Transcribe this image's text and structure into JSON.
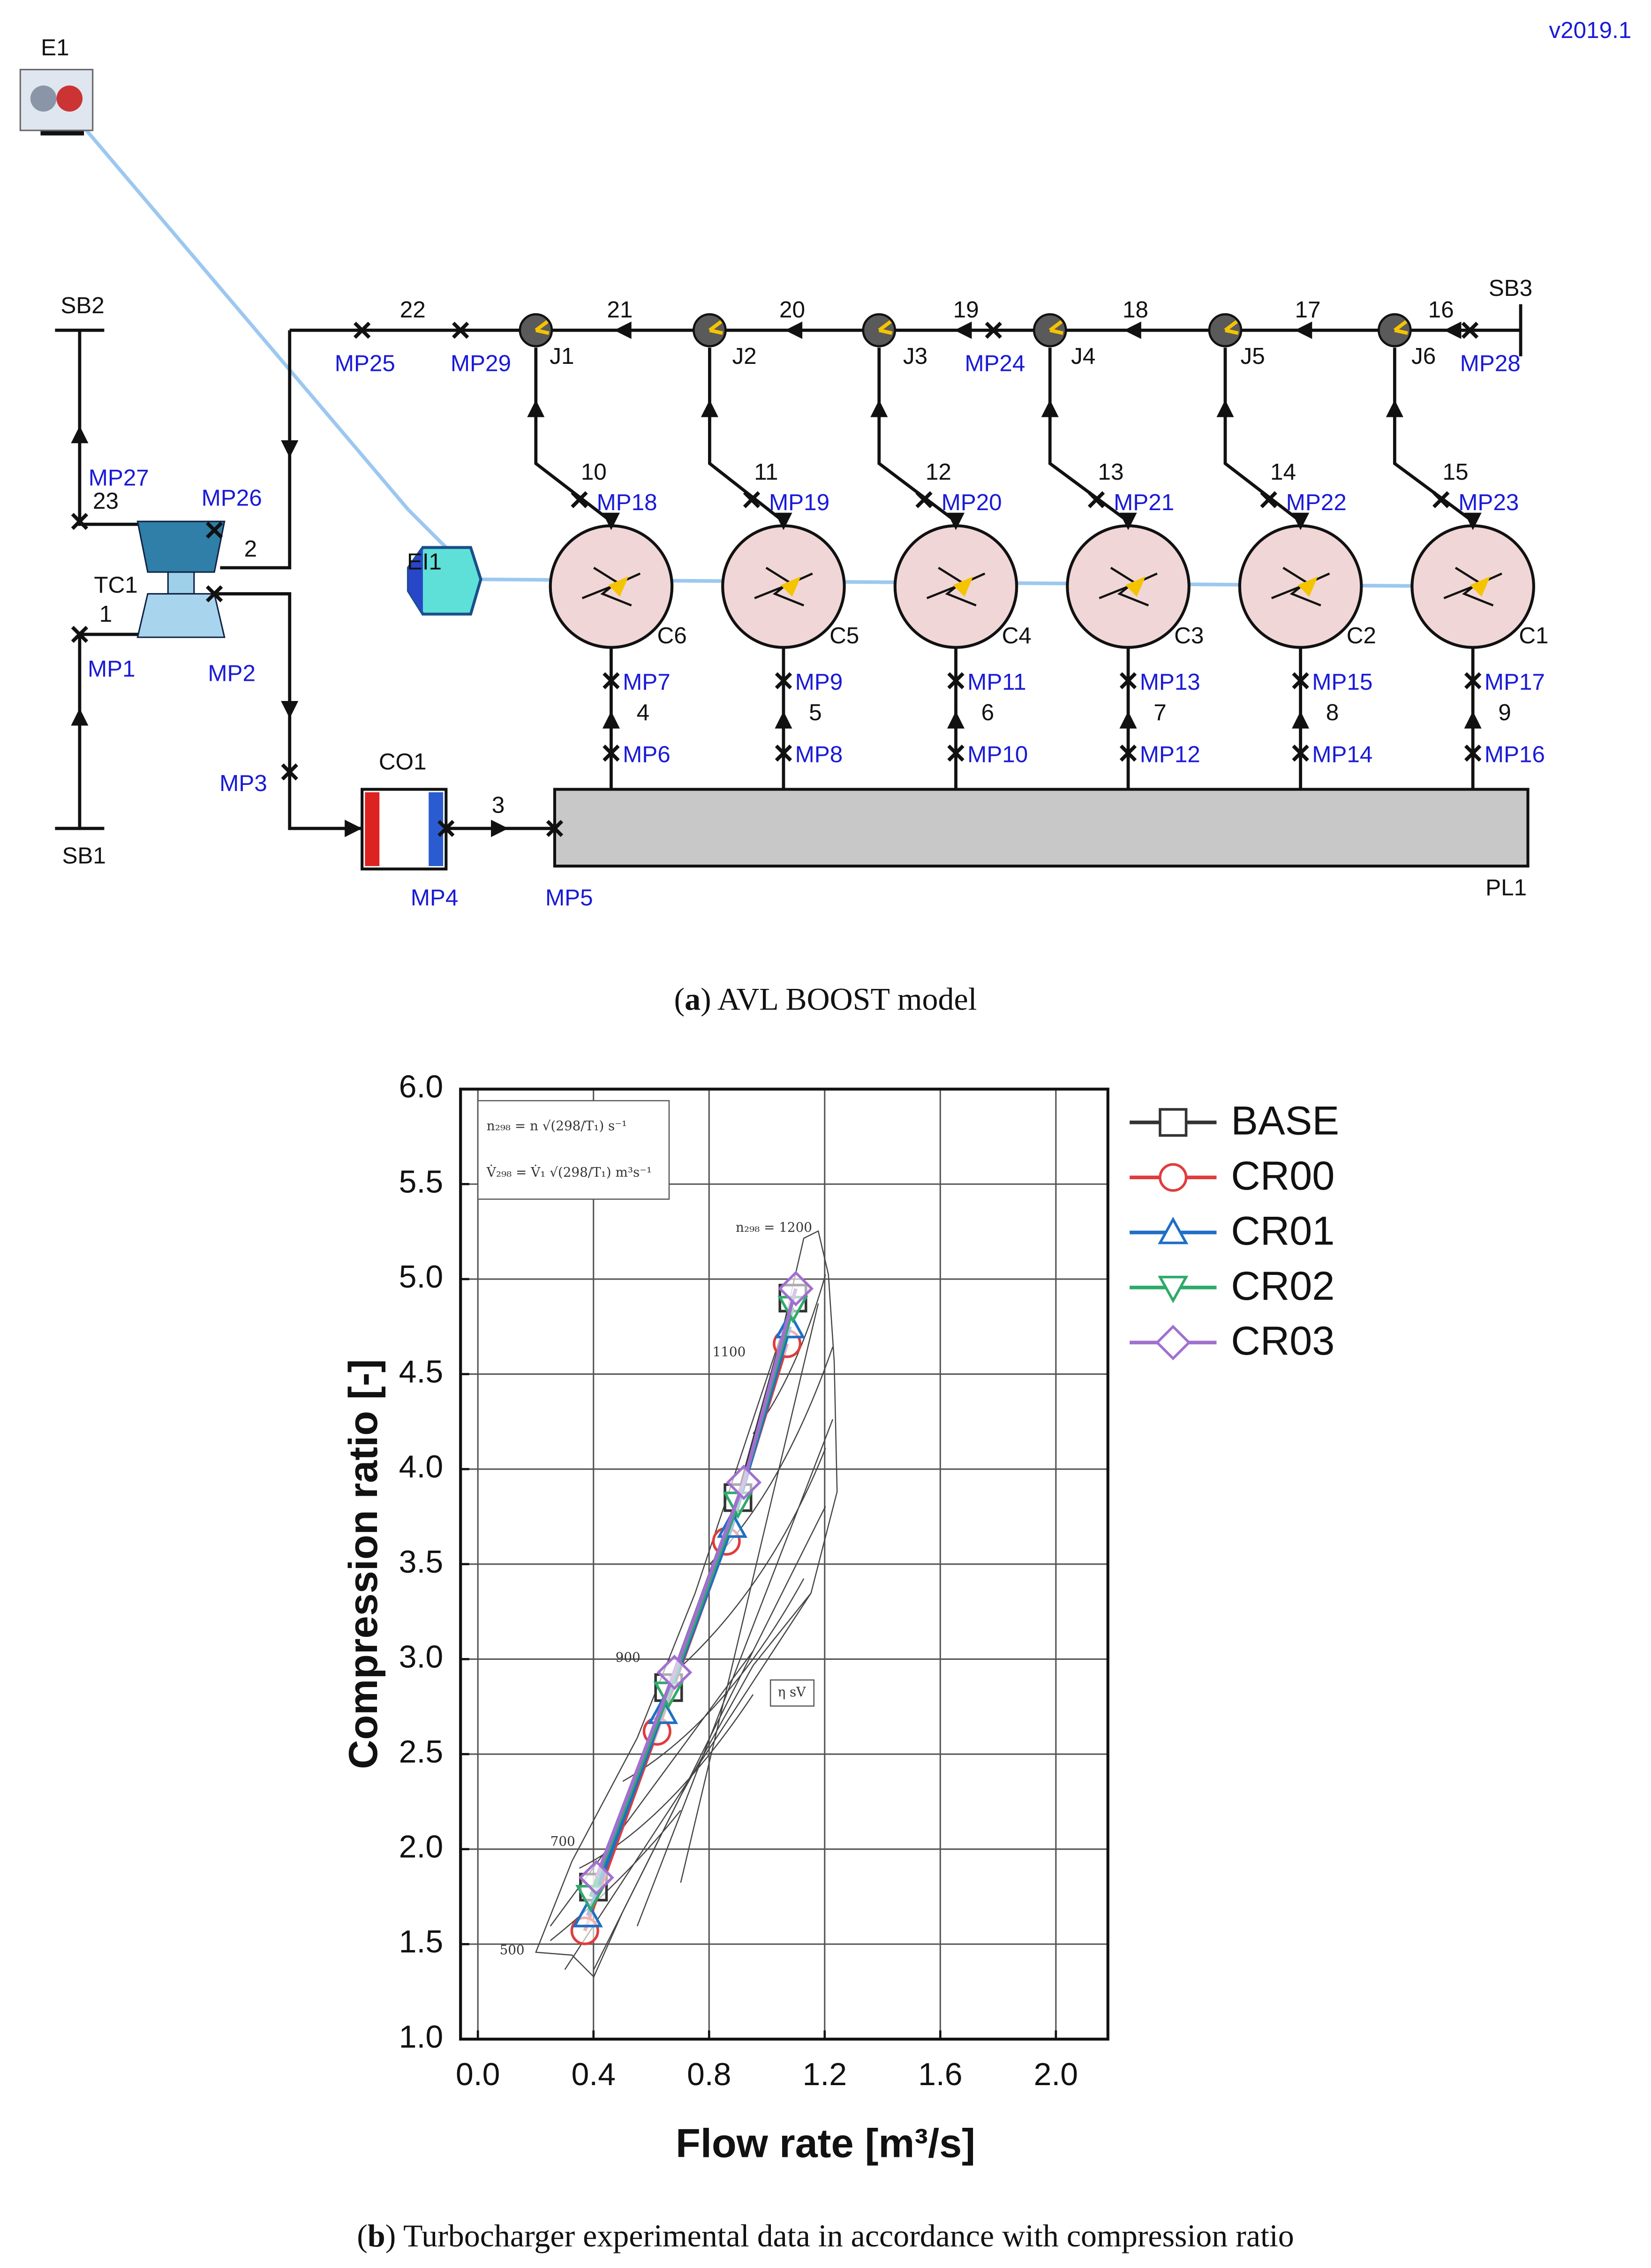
{
  "diagram": {
    "labels": [
      "v2019.1",
      "E1",
      "SB2",
      "SB1",
      "SB3",
      "TC1",
      "MP26",
      "MP27",
      "23",
      "2",
      "1",
      "MP1",
      "MP2",
      "MP3",
      "CO1",
      "3",
      "MP4",
      "MP5",
      "PL1",
      "EI1",
      "22",
      "MP25",
      "MP29",
      "J1",
      "21",
      "J2",
      "20",
      "J3",
      "19",
      "MP24",
      "J4",
      "18",
      "J5",
      "17",
      "J6",
      "16",
      "MP28"
    ],
    "cylinders": [
      {
        "name": "C6",
        "outlet_pipe": "10",
        "outlet_mp": "MP18",
        "inlet_mp_upper": "MP7",
        "inlet_pipe": "4",
        "inlet_mp_lower": "MP6"
      },
      {
        "name": "C5",
        "outlet_pipe": "11",
        "outlet_mp": "MP19",
        "inlet_mp_upper": "MP9",
        "inlet_pipe": "5",
        "inlet_mp_lower": "MP8"
      },
      {
        "name": "C4",
        "outlet_pipe": "12",
        "outlet_mp": "MP20",
        "inlet_mp_upper": "MP11",
        "inlet_pipe": "6",
        "inlet_mp_lower": "MP10"
      },
      {
        "name": "C3",
        "outlet_pipe": "13",
        "outlet_mp": "MP21",
        "inlet_mp_upper": "MP13",
        "inlet_pipe": "7",
        "inlet_mp_lower": "MP12"
      },
      {
        "name": "C2",
        "outlet_pipe": "14",
        "outlet_mp": "MP22",
        "inlet_mp_upper": "MP15",
        "inlet_pipe": "8",
        "inlet_mp_lower": "MP14"
      },
      {
        "name": "C1",
        "outlet_pipe": "15",
        "outlet_mp": "MP23",
        "inlet_mp_upper": "MP17",
        "inlet_pipe": "9",
        "inlet_mp_lower": "MP16"
      }
    ],
    "caption": [
      "(",
      "a",
      ") AVL BOOST model"
    ]
  },
  "chart_data": {
    "type": "line",
    "x_label": "Flow rate [m³/s]",
    "y_label": "Compression ratio [-]",
    "xlim": [
      -0.06,
      2.18
    ],
    "ylim": [
      1.0,
      6.0
    ],
    "xticks": [
      {
        "value": 0.0,
        "label": "0.0"
      },
      0.4,
      0.8,
      1.2,
      1.6,
      {
        "value": 2.0,
        "label": "2.0"
      }
    ],
    "yticks": [
      {
        "value": 1.0,
        "label": "1.0"
      },
      1.5,
      {
        "value": 2.0,
        "label": "2.0"
      },
      2.5,
      {
        "value": 3.0,
        "label": "3.0"
      },
      3.5,
      {
        "value": 4.0,
        "label": "4.0"
      },
      4.5,
      {
        "value": 5.0,
        "label": "5.0"
      },
      5.5,
      {
        "value": 6.0,
        "label": "6.0"
      }
    ],
    "grid": true,
    "legend": "right",
    "series": [
      {
        "name": "BASE",
        "color": "#333333",
        "marker": "square",
        "x": [
          0.4,
          0.66,
          0.9,
          1.09
        ],
        "values": [
          1.8,
          2.85,
          3.85,
          4.9
        ]
      },
      {
        "name": "CR00",
        "color": "#e03c3c",
        "marker": "circle",
        "x": [
          0.37,
          0.62,
          0.86,
          1.07
        ],
        "values": [
          1.57,
          2.62,
          3.62,
          4.66
        ]
      },
      {
        "name": "CR01",
        "color": "#1f6fc4",
        "marker": "triangle-up",
        "x": [
          0.38,
          0.64,
          0.88,
          1.08
        ],
        "values": [
          1.65,
          2.72,
          3.7,
          4.75
        ]
      },
      {
        "name": "CR02",
        "color": "#2eaa6a",
        "marker": "triangle-down",
        "x": [
          0.39,
          0.66,
          0.9,
          1.09
        ],
        "values": [
          1.75,
          2.82,
          3.82,
          4.85
        ]
      },
      {
        "name": "CR03",
        "color": "#a070d0",
        "marker": "diamond",
        "x": [
          0.41,
          0.68,
          0.92,
          1.1
        ],
        "values": [
          1.85,
          2.93,
          3.93,
          4.95
        ]
      }
    ],
    "map_labels": [
      "n₂₉₈ = n √(298/T₁)   s⁻¹",
      "V̇₂₉₈ = V̇₁ √(298/T₁)   m³s⁻¹",
      "n₂₉₈ = 1200",
      "1100",
      "900",
      "700",
      "500",
      "η sV"
    ],
    "caption": [
      "(",
      "b",
      ") Turbocharger experimental data in accordance with compression ratio"
    ]
  }
}
